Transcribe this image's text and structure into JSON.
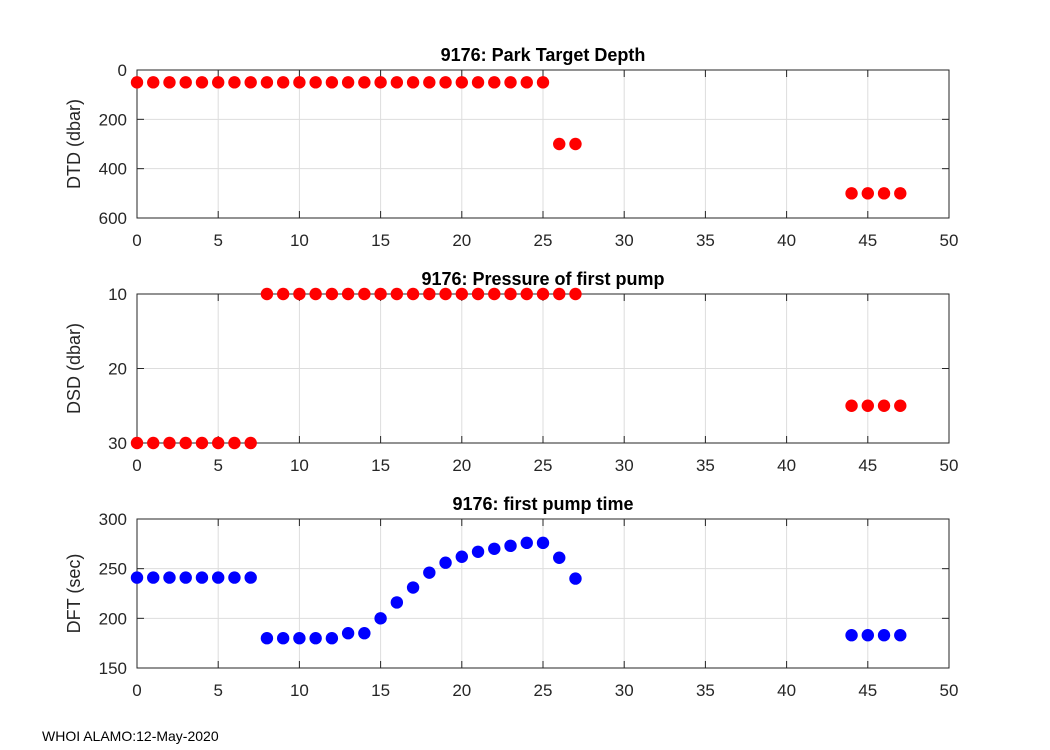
{
  "footer": {
    "text": "WHOI ALAMO:12-May-2020"
  },
  "colors": {
    "red": "#ff0000",
    "blue": "#0000ff",
    "grid": "#dddddd",
    "axis": "#262626"
  },
  "chart_data": [
    {
      "type": "scatter",
      "title": "9176: Park Target Depth",
      "xlabel": "",
      "ylabel": "DTD (dbar)",
      "xlim": [
        0,
        50
      ],
      "ylim": [
        0,
        600
      ],
      "y_reversed": true,
      "xticks": [
        0,
        5,
        10,
        15,
        20,
        25,
        30,
        35,
        40,
        45,
        50
      ],
      "yticks": [
        0,
        200,
        400,
        600
      ],
      "grid": true,
      "marker_color": "red",
      "x": [
        0,
        1,
        2,
        3,
        4,
        5,
        6,
        7,
        8,
        9,
        10,
        11,
        12,
        13,
        14,
        15,
        16,
        17,
        18,
        19,
        20,
        21,
        22,
        23,
        24,
        25,
        26,
        27,
        44,
        45,
        46,
        47
      ],
      "y": [
        50,
        50,
        50,
        50,
        50,
        50,
        50,
        50,
        50,
        50,
        50,
        50,
        50,
        50,
        50,
        50,
        50,
        50,
        50,
        50,
        50,
        50,
        50,
        50,
        50,
        50,
        300,
        300,
        500,
        500,
        500,
        500
      ]
    },
    {
      "type": "scatter",
      "title": "9176: Pressure of first pump",
      "xlabel": "",
      "ylabel": "DSD (dbar)",
      "xlim": [
        0,
        50
      ],
      "ylim": [
        10,
        30
      ],
      "y_reversed": true,
      "xticks": [
        0,
        5,
        10,
        15,
        20,
        25,
        30,
        35,
        40,
        45,
        50
      ],
      "yticks": [
        10,
        20,
        30
      ],
      "grid": true,
      "marker_color": "red",
      "x": [
        0,
        1,
        2,
        3,
        4,
        5,
        6,
        7,
        8,
        9,
        10,
        11,
        12,
        13,
        14,
        15,
        16,
        17,
        18,
        19,
        20,
        21,
        22,
        23,
        24,
        25,
        26,
        27,
        44,
        45,
        46,
        47
      ],
      "y": [
        30,
        30,
        30,
        30,
        30,
        30,
        30,
        30,
        10,
        10,
        10,
        10,
        10,
        10,
        10,
        10,
        10,
        10,
        10,
        10,
        10,
        10,
        10,
        10,
        10,
        10,
        10,
        10,
        25,
        25,
        25,
        25
      ]
    },
    {
      "type": "scatter",
      "title": "9176: first pump time",
      "xlabel": "",
      "ylabel": "DFT (sec)",
      "xlim": [
        0,
        50
      ],
      "ylim": [
        150,
        300
      ],
      "y_reversed": false,
      "xticks": [
        0,
        5,
        10,
        15,
        20,
        25,
        30,
        35,
        40,
        45,
        50
      ],
      "yticks": [
        150,
        200,
        250,
        300
      ],
      "grid": true,
      "marker_color": "blue",
      "x": [
        0,
        1,
        2,
        3,
        4,
        5,
        6,
        7,
        8,
        9,
        10,
        11,
        12,
        13,
        14,
        15,
        16,
        17,
        18,
        19,
        20,
        21,
        22,
        23,
        24,
        25,
        26,
        27,
        44,
        45,
        46,
        47
      ],
      "y": [
        241,
        241,
        241,
        241,
        241,
        241,
        241,
        241,
        180,
        180,
        180,
        180,
        180,
        185,
        185,
        200,
        216,
        231,
        246,
        256,
        262,
        267,
        270,
        273,
        276,
        276,
        261,
        240,
        183,
        183,
        183,
        183
      ]
    }
  ]
}
